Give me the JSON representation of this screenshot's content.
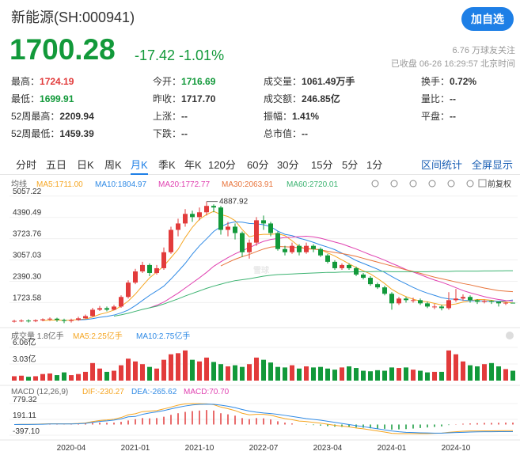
{
  "header": {
    "title": "新能源(SH:000941)",
    "button": "加自选",
    "price": "1700.28",
    "change": "-17.42 -1.01%",
    "followers": "6.76 万球友关注",
    "status": "已收盘 06-26 16:29:57 北京时间"
  },
  "stats": [
    {
      "label": "最高：",
      "value": "1724.19",
      "color": "#e23b3b"
    },
    {
      "label": "今开：",
      "value": "1716.69",
      "color": "#12993a"
    },
    {
      "label": "成交量：",
      "value": "1061.49万手",
      "color": "#333"
    },
    {
      "label": "换手：",
      "value": "0.72%",
      "color": "#333"
    },
    {
      "label": "最低：",
      "value": "1699.91",
      "color": "#12993a"
    },
    {
      "label": "昨收：",
      "value": "1717.70",
      "color": "#333"
    },
    {
      "label": "成交额：",
      "value": "246.85亿",
      "color": "#333"
    },
    {
      "label": "量比：",
      "value": "--",
      "color": "#333"
    },
    {
      "label": "52周最高：",
      "value": "2209.94",
      "color": "#333"
    },
    {
      "label": "上涨：",
      "value": "--",
      "color": "#333"
    },
    {
      "label": "振幅：",
      "value": "1.41%",
      "color": "#333"
    },
    {
      "label": "平盘：",
      "value": "--",
      "color": "#333"
    },
    {
      "label": "52周最低：",
      "value": "1459.39",
      "color": "#333"
    },
    {
      "label": "下跌：",
      "value": "--",
      "color": "#333"
    },
    {
      "label": "总市值：",
      "value": "--",
      "color": "#333"
    }
  ],
  "tabs": [
    "分时",
    "五日",
    "日K",
    "周K",
    "月K",
    "季K",
    "年K",
    "120分",
    "60分",
    "30分",
    "15分",
    "5分",
    "1分"
  ],
  "active_tab": 4,
  "tools": [
    "区间统计",
    "全屏显示"
  ],
  "chart_data": {
    "type": "candlestick",
    "watermark": "雪球",
    "ma_label": "均线",
    "adjust": "前复权",
    "up_color": "#e23b3b",
    "down_color": "#12993a",
    "categories": [
      null,
      null,
      null,
      null,
      null,
      null,
      null,
      null,
      "2020-04",
      null,
      null,
      null,
      null,
      null,
      null,
      null,
      null,
      "2021-01",
      null,
      null,
      null,
      null,
      null,
      null,
      null,
      null,
      "2021-10",
      null,
      null,
      null,
      null,
      null,
      null,
      null,
      null,
      "2022-07",
      null,
      null,
      null,
      null,
      null,
      null,
      null,
      null,
      "2023-04",
      null,
      null,
      null,
      null,
      null,
      null,
      null,
      null,
      "2024-01",
      null,
      null,
      null,
      null,
      null,
      null,
      null,
      null,
      "2024-10",
      null,
      null,
      null,
      null,
      null,
      null,
      null,
      null
    ],
    "ylim": [
      1040,
      5300
    ],
    "yticks": [
      1723.58,
      {
        "value": 2390.3,
        "label": "2390.30"
      },
      3057.03,
      3723.76,
      4390.49,
      5057.22
    ],
    "annotation": {
      "text": "4887.92",
      "value": 4887.92
    },
    "open": [
      1130,
      1150,
      1160,
      1140,
      1170,
      1200,
      1220,
      1180,
      1150,
      1180,
      1230,
      1300,
      1500,
      1550,
      1500,
      1600,
      1900,
      2350,
      2700,
      2900,
      2650,
      2800,
      3300,
      4000,
      4200,
      4500,
      4400,
      4550,
      4750,
      4700,
      4000,
      4100,
      3900,
      3300,
      3600,
      4300,
      4200,
      3900,
      3400,
      3300,
      3500,
      3300,
      3500,
      3400,
      3200,
      3000,
      2800,
      2900,
      2800,
      2600,
      2500,
      2300,
      2200,
      2000,
      1700,
      1850,
      1800,
      1800,
      1700,
      1600,
      1600,
      1550,
      1800,
      1850,
      1900,
      1800,
      1750,
      1780,
      1750,
      1700,
      1720
    ],
    "high": [
      1190,
      1200,
      1200,
      1200,
      1230,
      1260,
      1250,
      1220,
      1220,
      1280,
      1350,
      1560,
      1620,
      1600,
      1650,
      1950,
      2420,
      2780,
      3000,
      2950,
      2900,
      3450,
      4100,
      4350,
      4650,
      4600,
      4700,
      4887.92,
      4800,
      4750,
      4250,
      4200,
      3950,
      3700,
      4400,
      4450,
      4250,
      3950,
      3500,
      3600,
      3550,
      3600,
      3550,
      3450,
      3250,
      3050,
      2950,
      2950,
      2850,
      2650,
      2550,
      2350,
      2250,
      2050,
      1900,
      1900,
      1880,
      1850,
      1750,
      1680,
      1650,
      2050,
      2150,
      1980,
      1950,
      1830,
      1820,
      1800,
      1760,
      1750,
      1724.19
    ],
    "low": [
      1100,
      1110,
      1100,
      1110,
      1140,
      1150,
      1120,
      1080,
      1100,
      1150,
      1220,
      1280,
      1460,
      1450,
      1480,
      1560,
      1850,
      2300,
      2650,
      2550,
      2600,
      2750,
      3250,
      3800,
      4100,
      4250,
      4300,
      4450,
      4550,
      3850,
      3800,
      3700,
      3150,
      3100,
      3500,
      4000,
      3800,
      3350,
      3200,
      3250,
      3200,
      3250,
      3300,
      3150,
      2950,
      2750,
      2750,
      2750,
      2550,
      2450,
      2250,
      2150,
      1950,
      1500,
      1650,
      1720,
      1720,
      1650,
      1550,
      1520,
      1480,
      1500,
      1750,
      1780,
      1720,
      1680,
      1700,
      1680,
      1600,
      1650,
      1699.91
    ],
    "close": [
      1150,
      1160,
      1140,
      1170,
      1200,
      1220,
      1180,
      1150,
      1180,
      1230,
      1300,
      1500,
      1550,
      1500,
      1600,
      1900,
      2350,
      2700,
      2900,
      2650,
      2800,
      3300,
      4000,
      4200,
      4500,
      4400,
      4550,
      4750,
      4700,
      4000,
      4100,
      3900,
      3300,
      3600,
      4300,
      4200,
      3900,
      3400,
      3300,
      3500,
      3300,
      3500,
      3400,
      3200,
      3000,
      2800,
      2900,
      2800,
      2600,
      2500,
      2300,
      2200,
      2000,
      1700,
      1850,
      1800,
      1800,
      1700,
      1600,
      1600,
      1550,
      1800,
      1850,
      1900,
      1800,
      1750,
      1780,
      1750,
      1700,
      1720,
      1700.28
    ],
    "ma": [
      {
        "name": "MA5:1711.00",
        "color": "#f5a623",
        "values": [
          null,
          null,
          null,
          null,
          1164,
          1174,
          1178,
          1168,
          1176,
          1192,
          1208,
          1272,
          1356,
          1410,
          1490,
          1610,
          1770,
          1990,
          2250,
          2500,
          2680,
          2870,
          3130,
          3390,
          3760,
          4080,
          4330,
          4480,
          4580,
          4480,
          4420,
          4290,
          4010,
          3780,
          3840,
          3860,
          3860,
          3880,
          3820,
          3660,
          3480,
          3400,
          3400,
          3380,
          3280,
          3180,
          3060,
          2940,
          2820,
          2720,
          2620,
          2480,
          2320,
          2140,
          2010,
          1910,
          1830,
          1770,
          1750,
          1700,
          1650,
          1650,
          1680,
          1740,
          1780,
          1820,
          1816,
          1796,
          1756,
          1740,
          1711
        ]
      },
      {
        "name": "MA10:1804.97",
        "color": "#2f8ae5",
        "values": [
          null,
          null,
          null,
          null,
          null,
          null,
          null,
          null,
          null,
          1182,
          1193,
          1220,
          1262,
          1292,
          1333,
          1400,
          1490,
          1630,
          1790,
          1950,
          2090,
          2240,
          2460,
          2700,
          2950,
          3240,
          3500,
          3720,
          3950,
          4100,
          4200,
          4250,
          4240,
          4200,
          4190,
          4160,
          4100,
          3960,
          3860,
          3820,
          3740,
          3680,
          3610,
          3530,
          3460,
          3380,
          3270,
          3160,
          3040,
          2950,
          2860,
          2770,
          2670,
          2540,
          2420,
          2310,
          2200,
          2100,
          2020,
          1950,
          1880,
          1840,
          1830,
          1800,
          1780,
          1780,
          1770,
          1770,
          1760,
          1780,
          1804.97
        ]
      },
      {
        "name": "MA20:1772.77",
        "color": "#e040b0",
        "values": [
          null,
          null,
          null,
          null,
          null,
          null,
          null,
          null,
          null,
          null,
          null,
          null,
          null,
          null,
          null,
          null,
          null,
          null,
          null,
          1560,
          1640,
          1740,
          1880,
          2020,
          2180,
          2340,
          2500,
          2670,
          2860,
          3000,
          3130,
          3250,
          3350,
          3440,
          3550,
          3640,
          3700,
          3730,
          3760,
          3770,
          3790,
          3800,
          3780,
          3740,
          3680,
          3620,
          3560,
          3480,
          3400,
          3310,
          3220,
          3140,
          3050,
          2950,
          2860,
          2760,
          2680,
          2600,
          2510,
          2430,
          2360,
          2280,
          2190,
          2100,
          2030,
          1970,
          1910,
          1860,
          1820,
          1790,
          1772.77
        ]
      },
      {
        "name": "MA30:2063.91",
        "color": "#e8743b",
        "values": [
          null,
          null,
          null,
          null,
          null,
          null,
          null,
          null,
          null,
          null,
          null,
          null,
          null,
          null,
          null,
          null,
          null,
          null,
          null,
          null,
          null,
          null,
          null,
          null,
          null,
          null,
          null,
          null,
          null,
          2870,
          2980,
          3080,
          3160,
          3230,
          3320,
          3400,
          3460,
          3480,
          3470,
          3460,
          3440,
          3420,
          3400,
          3370,
          3330,
          3290,
          3260,
          3220,
          3170,
          3110,
          3050,
          2990,
          2930,
          2870,
          2810,
          2750,
          2700,
          2640,
          2580,
          2520,
          2470,
          2420,
          2370,
          2320,
          2280,
          2230,
          2180,
          2140,
          2100,
          2080,
          2063.91
        ]
      },
      {
        "name": "MA60:2720.01",
        "color": "#3cb371",
        "values": [
          null,
          null,
          null,
          null,
          null,
          null,
          null,
          null,
          null,
          null,
          null,
          null,
          null,
          null,
          1300,
          1340,
          1390,
          1450,
          1510,
          1560,
          1610,
          1680,
          1760,
          1840,
          1930,
          2010,
          2090,
          2170,
          2240,
          2300,
          2360,
          2410,
          2440,
          2470,
          2510,
          2550,
          2580,
          2600,
          2610,
          2620,
          2630,
          2640,
          2650,
          2660,
          2670,
          2670,
          2680,
          2680,
          2690,
          2690,
          2690,
          2700,
          2700,
          2690,
          2690,
          2690,
          2690,
          2690,
          2690,
          2700,
          2700,
          2700,
          2710,
          2710,
          2710,
          2710,
          2715,
          2715,
          2718,
          2720,
          2720.01
        ]
      }
    ],
    "volume": {
      "title": "成交量 1.8亿手",
      "legend": [
        {
          "name": "MA5:2.25亿手",
          "color": "#f5a623"
        },
        {
          "name": "MA10:2.75亿手",
          "color": "#2f8ae5"
        }
      ],
      "ylim": [
        0,
        8.8
      ],
      "yticks": [
        {
          "value": 6.06,
          "label": "6.06亿"
        },
        {
          "value": 3.03,
          "label": "3.03亿"
        }
      ],
      "values": [
        0.8,
        0.9,
        0.7,
        0.8,
        1.2,
        1.3,
        1.0,
        1.5,
        1.0,
        1.2,
        1.6,
        3.2,
        2.2,
        1.6,
        1.8,
        2.8,
        4.0,
        3.5,
        3.0,
        2.5,
        2.2,
        3.8,
        4.8,
        5.0,
        5.5,
        3.8,
        3.5,
        4.2,
        3.4,
        3.0,
        2.6,
        2.8,
        2.5,
        3.0,
        4.2,
        3.8,
        3.3,
        2.5,
        2.4,
        2.8,
        2.2,
        2.6,
        2.4,
        2.5,
        2.2,
        2.0,
        2.4,
        2.6,
        2.3,
        1.8,
        1.7,
        1.9,
        1.8,
        2.4,
        2.3,
        2.4,
        2.0,
        1.8,
        1.5,
        1.6,
        1.6,
        5.5,
        4.8,
        3.5,
        2.8,
        2.6,
        3.0,
        3.2,
        2.6,
        2.1,
        1.8
      ]
    },
    "macd": {
      "title": "MACD (12,26,9)",
      "ylim": [
        -870,
        1075
      ],
      "yticks": [
        779.32,
        191.11,
        {
          "value": -397.1,
          "label": "-397.10"
        }
      ],
      "hist_legend": {
        "name": "MACD:70.70",
        "color": "#e040b0"
      },
      "histogram": [
        0,
        5,
        5,
        10,
        15,
        20,
        15,
        10,
        15,
        20,
        30,
        60,
        70,
        65,
        70,
        100,
        150,
        200,
        240,
        230,
        240,
        290,
        360,
        420,
        470,
        500,
        520,
        540,
        520,
        420,
        380,
        330,
        240,
        200,
        240,
        230,
        190,
        120,
        70,
        40,
        0,
        -10,
        -20,
        -40,
        -60,
        -80,
        -90,
        -100,
        -110,
        -120,
        -140,
        -150,
        -160,
        -190,
        -180,
        -170,
        -150,
        -130,
        -110,
        -90,
        -70,
        -20,
        10,
        30,
        40,
        50,
        60,
        60,
        65,
        70,
        70.7
      ],
      "lines": [
        {
          "name": "DIF:-230.27",
          "color": "#f5a623",
          "values": [
            0,
            5,
            5,
            10,
            20,
            30,
            30,
            25,
            30,
            40,
            60,
            110,
            150,
            170,
            200,
            260,
            360,
            400,
            480,
            500,
            520,
            580,
            650,
            720,
            770,
            780,
            775,
            770,
            740,
            650,
            590,
            520,
            420,
            360,
            380,
            380,
            350,
            280,
            220,
            180,
            130,
            110,
            80,
            50,
            10,
            -30,
            -60,
            -90,
            -130,
            -160,
            -200,
            -240,
            -280,
            -330,
            -340,
            -340,
            -340,
            -340,
            -340,
            -330,
            -320,
            -290,
            -270,
            -250,
            -240,
            -240,
            -235,
            -235,
            -232,
            -230,
            -230.27
          ]
        },
        {
          "name": "DEA:-265.62",
          "color": "#2f8ae5",
          "values": [
            0,
            2,
            3,
            5,
            12,
            20,
            22,
            20,
            22,
            30,
            45,
            80,
            115,
            137,
            165,
            210,
            285,
            300,
            380,
            430,
            470,
            520,
            580,
            640,
            690,
            730,
            750,
            760,
            750,
            720,
            680,
            630,
            560,
            500,
            460,
            430,
            410,
            380,
            340,
            300,
            260,
            220,
            190,
            160,
            120,
            80,
            40,
            0,
            -40,
            -80,
            -120,
            -160,
            -200,
            -240,
            -270,
            -290,
            -300,
            -310,
            -315,
            -320,
            -320,
            -310,
            -300,
            -290,
            -280,
            -275,
            -270,
            -268,
            -266,
            -265,
            -265.62
          ]
        }
      ]
    }
  }
}
